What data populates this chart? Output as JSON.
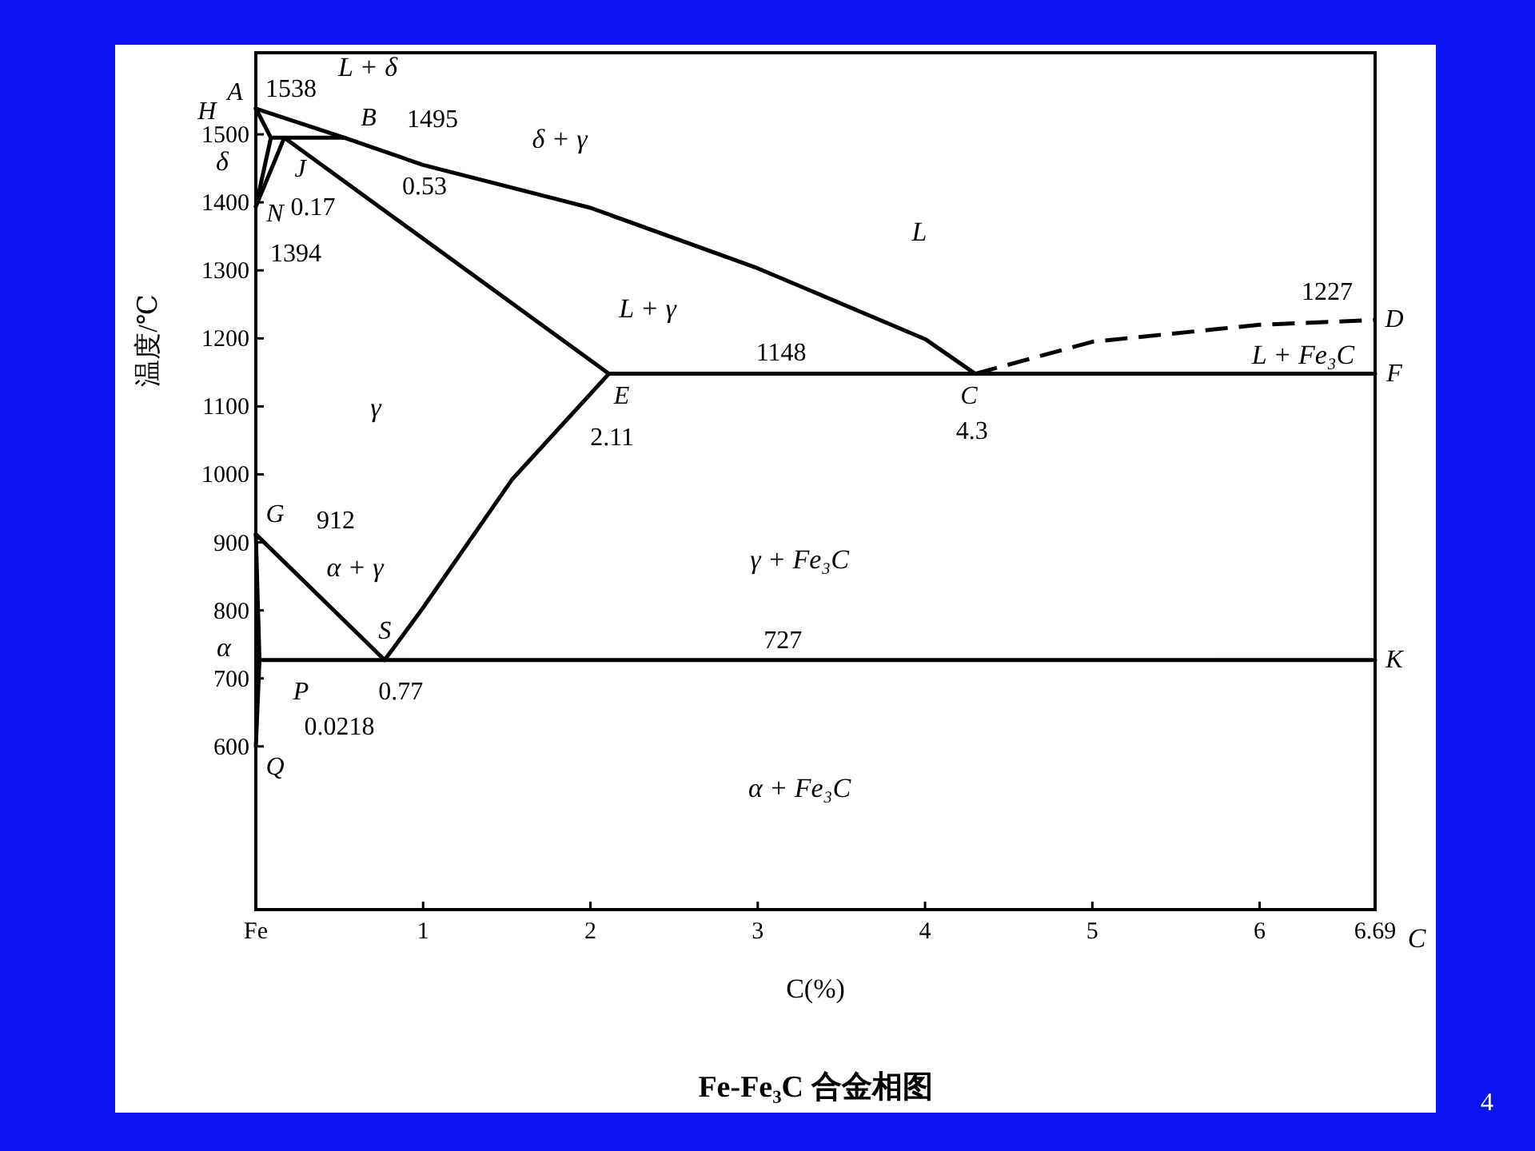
{
  "chart_data": {
    "type": "line",
    "title": "Fe-Fe₃C 合金相图",
    "xlabel": "C(%)",
    "ylabel": "温度/℃",
    "xlim": [
      0,
      6.69
    ],
    "ylim": [
      360,
      1620
    ],
    "xticks": [
      {
        "value": 0,
        "label": "Fe"
      },
      1,
      2,
      3,
      4,
      5,
      6,
      {
        "value": 6.69,
        "label": "6.69"
      }
    ],
    "yticks": [
      600,
      700,
      800,
      900,
      1000,
      1100,
      1200,
      1300,
      1400,
      1500
    ],
    "marker": "none",
    "series": [
      {
        "color": "#000000",
        "x": [
          0,
          0.53,
          1,
          2,
          3,
          4,
          4.3
        ],
        "values": [
          1538,
          1495,
          1455,
          1392,
          1303,
          1199,
          1148
        ]
      },
      {
        "color": "#000000",
        "line_style": "dashed",
        "x": [
          4.3,
          5,
          6,
          6.69
        ],
        "values": [
          1148,
          1195,
          1220,
          1227
        ]
      },
      {
        "color": "#000000",
        "x": [
          0,
          0.09,
          0
        ],
        "values": [
          1538,
          1495,
          1394
        ]
      },
      {
        "color": "#000000",
        "x": [
          0.09,
          0.53
        ],
        "values": [
          1495,
          1495
        ]
      },
      {
        "color": "#000000",
        "x": [
          0.17,
          2.11
        ],
        "values": [
          1495,
          1148
        ]
      },
      {
        "color": "#000000",
        "x": [
          0.17,
          0
        ],
        "values": [
          1495,
          1394
        ]
      },
      {
        "color": "#000000",
        "x": [
          2.11,
          6.69
        ],
        "values": [
          1148,
          1148
        ]
      },
      {
        "color": "#000000",
        "x": [
          2.11,
          1.53,
          1,
          0.77
        ],
        "values": [
          1148,
          992,
          804,
          727
        ]
      },
      {
        "color": "#000000",
        "x": [
          0,
          0.77
        ],
        "values": [
          912,
          727
        ]
      },
      {
        "color": "#000000",
        "x": [
          0,
          0.0218,
          0
        ],
        "values": [
          912,
          727,
          600
        ]
      },
      {
        "color": "#000000",
        "x": [
          0.0218,
          6.69
        ],
        "values": [
          727,
          727
        ]
      }
    ],
    "annotations": [
      {
        "text": "A",
        "x": 0,
        "y": 1538
      },
      {
        "text": "1538",
        "x": 0,
        "y": 1538
      },
      {
        "text": "H",
        "x": 0.09,
        "y": 1495
      },
      {
        "text": "B",
        "x": 0.53,
        "y": 1495
      },
      {
        "text": "1495",
        "x": 0.53,
        "y": 1495
      },
      {
        "text": "J",
        "x": 0.17,
        "y": 1495
      },
      {
        "text": "0.17",
        "x": 0.17,
        "y": 1495
      },
      {
        "text": "0.53",
        "x": 0.53,
        "y": 1495
      },
      {
        "text": "N",
        "x": 0,
        "y": 1394
      },
      {
        "text": "1394",
        "x": 0,
        "y": 1394
      },
      {
        "text": "1148",
        "x": 3.14,
        "y": 1148
      },
      {
        "text": "E",
        "x": 2.11,
        "y": 1148
      },
      {
        "text": "2.11",
        "x": 2.11,
        "y": 1148
      },
      {
        "text": "C",
        "x": 4.3,
        "y": 1148
      },
      {
        "text": "4.3",
        "x": 4.3,
        "y": 1148
      },
      {
        "text": "1227",
        "x": 6.69,
        "y": 1227
      },
      {
        "text": "D",
        "x": 6.69,
        "y": 1227
      },
      {
        "text": "F",
        "x": 6.69,
        "y": 1148
      },
      {
        "text": "G",
        "x": 0,
        "y": 912
      },
      {
        "text": "912",
        "x": 0,
        "y": 912
      },
      {
        "text": "S",
        "x": 0.77,
        "y": 727
      },
      {
        "text": "727",
        "x": 3.15,
        "y": 727
      },
      {
        "text": "K",
        "x": 6.69,
        "y": 727
      },
      {
        "text": "P",
        "x": 0.0218,
        "y": 727
      },
      {
        "text": "0.77",
        "x": 0.77,
        "y": 727
      },
      {
        "text": "0.0218",
        "x": 0.0218,
        "y": 727
      },
      {
        "text": "Q",
        "x": 0,
        "y": 600
      },
      "L + δ",
      "δ + γ",
      "L",
      "L + γ",
      "L + Fe₃C",
      "γ",
      "α + γ",
      "γ + Fe₃C",
      "α + Fe₃C",
      "δ",
      "α",
      "C",
      "4"
    ]
  }
}
